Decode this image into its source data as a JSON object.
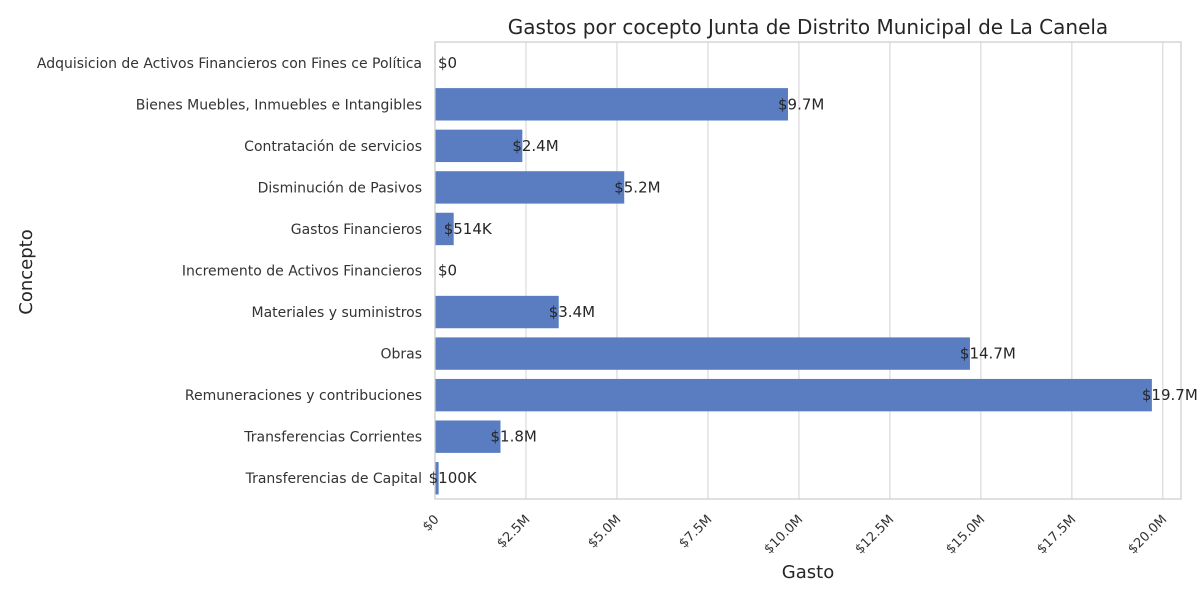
{
  "chart_data": {
    "type": "bar",
    "orientation": "horizontal",
    "title": "Gastos por cocepto Junta de Distrito Municipal de La Canela",
    "xlabel": "Gasto",
    "ylabel": "Concepto",
    "categories": [
      "Adquisicion de Activos Financieros con Fines ce Política",
      "Bienes Muebles, Inmuebles e Intangibles",
      "Contratación de servicios",
      "Disminución de Pasivos",
      "Gastos Financieros",
      "Incremento de Activos Financieros",
      "Materiales y suministros",
      "Obras",
      "Remuneraciones y contribuciones",
      "Transferencias Corrientes",
      "Transferencias de Capital"
    ],
    "values": [
      0,
      9700000,
      2400000,
      5200000,
      514000,
      0,
      3400000,
      14700000,
      19700000,
      1800000,
      100000
    ],
    "data_labels": [
      "$0",
      "$9.7M",
      "$2.4M",
      "$5.2M",
      "$514K",
      "$0",
      "$3.4M",
      "$14.7M",
      "$19.7M",
      "$1.8M",
      "$100K"
    ],
    "xlim": [
      0,
      20500000
    ],
    "xticks": [
      0,
      2500000,
      5000000,
      7500000,
      10000000,
      12500000,
      15000000,
      17500000,
      20000000
    ],
    "xtick_labels": [
      "$0",
      "$2.5M",
      "$5.0M",
      "$7.5M",
      "$10.0M",
      "$12.5M",
      "$15.0M",
      "$17.5M",
      "$20.0M"
    ],
    "grid": "vertical",
    "colors": {
      "bar": "#5a7dc2",
      "grid": "#d9d9d9",
      "axis": "#cccccc",
      "text": "#262626"
    }
  }
}
